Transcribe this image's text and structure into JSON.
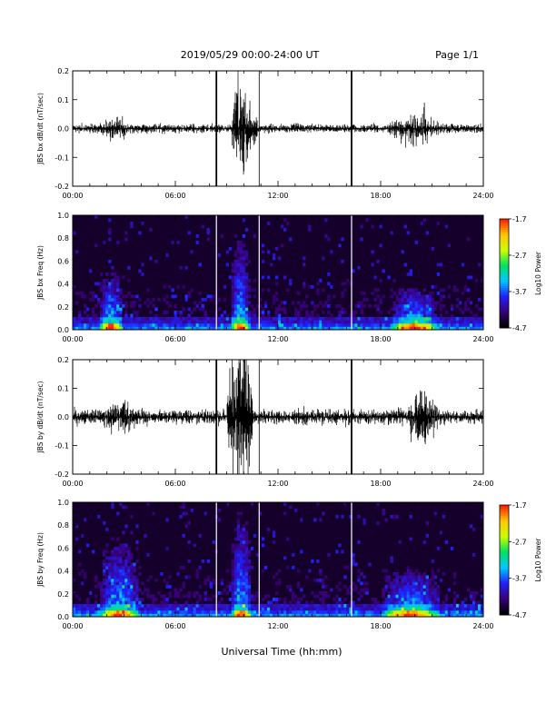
{
  "header": {
    "title": "2019/05/29  00:00-24:00 UT",
    "page": "Page 1/1"
  },
  "xlabel": "Universal Time (hh:mm)",
  "colorbar": {
    "label": "Log10 Power",
    "tick_labels": [
      "-1.7",
      "-2.7",
      "-3.7",
      "-4.7"
    ],
    "range": [
      -4.7,
      -1.7
    ],
    "colormap": [
      "#000000",
      "#3a007a",
      "#2020ff",
      "#00c8ff",
      "#00e060",
      "#c8ff00",
      "#ffc800",
      "#ff2000"
    ]
  },
  "chart_data": [
    {
      "type": "line",
      "title": "",
      "ylabel": "JBS bx dB/dt (nT/sec)",
      "xlabel": "",
      "xlim": [
        0,
        24
      ],
      "ylim": [
        -0.2,
        0.2
      ],
      "x_tick_labels": [
        "00:00",
        "06:00",
        "12:00",
        "18:00",
        "24:00"
      ],
      "y_tick_labels": [
        "0.2",
        "0.1",
        "0.0",
        "-0.1",
        "-0.2"
      ],
      "baseline_noise": 0.012,
      "activity_bursts": [
        {
          "start": 1.5,
          "end": 3.5,
          "amplitude": 0.03
        },
        {
          "start": 9.3,
          "end": 10.4,
          "amplitude": 0.14
        },
        {
          "start": 10.4,
          "end": 10.8,
          "amplitude": 0.06
        },
        {
          "start": 18.5,
          "end": 21.5,
          "amplitude": 0.04
        },
        {
          "start": 20.3,
          "end": 20.8,
          "amplitude": 0.07
        }
      ],
      "vertical_markers": [
        8.4,
        10.9,
        16.3
      ],
      "color": "#000000"
    },
    {
      "type": "heatmap",
      "title": "",
      "ylabel": "JBS bx Freq (Hz)",
      "xlim": [
        0,
        24
      ],
      "ylim": [
        0,
        1.0
      ],
      "x_tick_labels": [
        "00:00",
        "06:00",
        "12:00",
        "18:00",
        "24:00"
      ],
      "y_tick_labels": [
        "1.0",
        "0.8",
        "0.6",
        "0.4",
        "0.2",
        "0.0"
      ],
      "zlim": [
        -4.7,
        -1.7
      ],
      "vertical_markers": [
        8.4,
        10.9,
        16.3
      ],
      "bright_bands": [
        {
          "start": 9.2,
          "end": 10.4,
          "top_freq": 0.9
        },
        {
          "start": 1.5,
          "end": 3.0,
          "top_freq": 0.5
        },
        {
          "start": 18.5,
          "end": 21.5,
          "top_freq": 0.35
        }
      ]
    },
    {
      "type": "line",
      "title": "",
      "ylabel": "JBS by dB/dt (nT/sec)",
      "xlabel": "",
      "xlim": [
        0,
        24
      ],
      "ylim": [
        -0.2,
        0.2
      ],
      "x_tick_labels": [
        "00:00",
        "06:00",
        "12:00",
        "18:00",
        "24:00"
      ],
      "y_tick_labels": [
        "0.2",
        "0.1",
        "0.0",
        "-0.1",
        "-0.2"
      ],
      "baseline_noise": 0.02,
      "activity_bursts": [
        {
          "start": 1.5,
          "end": 4.0,
          "amplitude": 0.05
        },
        {
          "start": 9.0,
          "end": 10.5,
          "amplitude": 0.25
        },
        {
          "start": 19.5,
          "end": 21.5,
          "amplitude": 0.08
        },
        {
          "start": 20.3,
          "end": 20.8,
          "amplitude": 0.1
        }
      ],
      "vertical_markers": [
        8.4,
        10.9,
        16.3
      ],
      "color": "#000000"
    },
    {
      "type": "heatmap",
      "title": "",
      "ylabel": "JBS by Freq (Hz)",
      "xlim": [
        0,
        24
      ],
      "ylim": [
        0,
        1.0
      ],
      "x_tick_labels": [
        "00:00",
        "06:00",
        "12:00",
        "18:00",
        "24:00"
      ],
      "y_tick_labels": [
        "1.0",
        "0.8",
        "0.6",
        "0.4",
        "0.2",
        "0.0"
      ],
      "zlim": [
        -4.7,
        -1.7
      ],
      "vertical_markers": [
        8.4,
        10.9,
        16.3
      ],
      "bright_bands": [
        {
          "start": 9.2,
          "end": 10.5,
          "top_freq": 1.0
        },
        {
          "start": 1.5,
          "end": 4.0,
          "top_freq": 0.7
        },
        {
          "start": 18.0,
          "end": 21.5,
          "top_freq": 0.4
        }
      ]
    }
  ]
}
